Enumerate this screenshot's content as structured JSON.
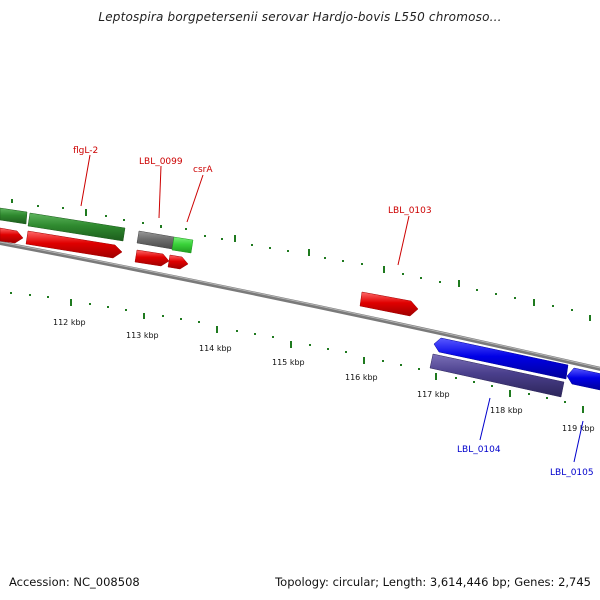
{
  "title": "Leptospira borgpetersenii serovar Hardjo-bovis L550 chromoso...",
  "footer": {
    "accession": "Accession: NC_008508",
    "summary": "Topology: circular; Length: 3,614,446 bp; Genes: 2,745"
  },
  "scale": {
    "ticks": [
      "112 kbp",
      "113 kbp",
      "114 kbp",
      "115 kbp",
      "116 kbp",
      "117 kbp",
      "118 kbp",
      "119 kbp"
    ]
  },
  "genes": {
    "red_labels": [
      "flgL-2",
      "LBL_0099",
      "csrA",
      "LBL_0103"
    ],
    "blue_labels": [
      "LBL_0104",
      "LBL_0105"
    ]
  },
  "colors": {
    "forward_cds": "#e00000",
    "reverse_cds": "#0000e6",
    "gene_green": "#2f8a2f",
    "gene_gray": "#6e6e6e",
    "gene_lightgreen": "#3ad23a",
    "reverse_dark": "#4a3f8c",
    "tick_green": "#1f7a1f",
    "label_red": "#cc0000",
    "label_blue": "#0000cc",
    "backbone": "#7a7a7a"
  }
}
